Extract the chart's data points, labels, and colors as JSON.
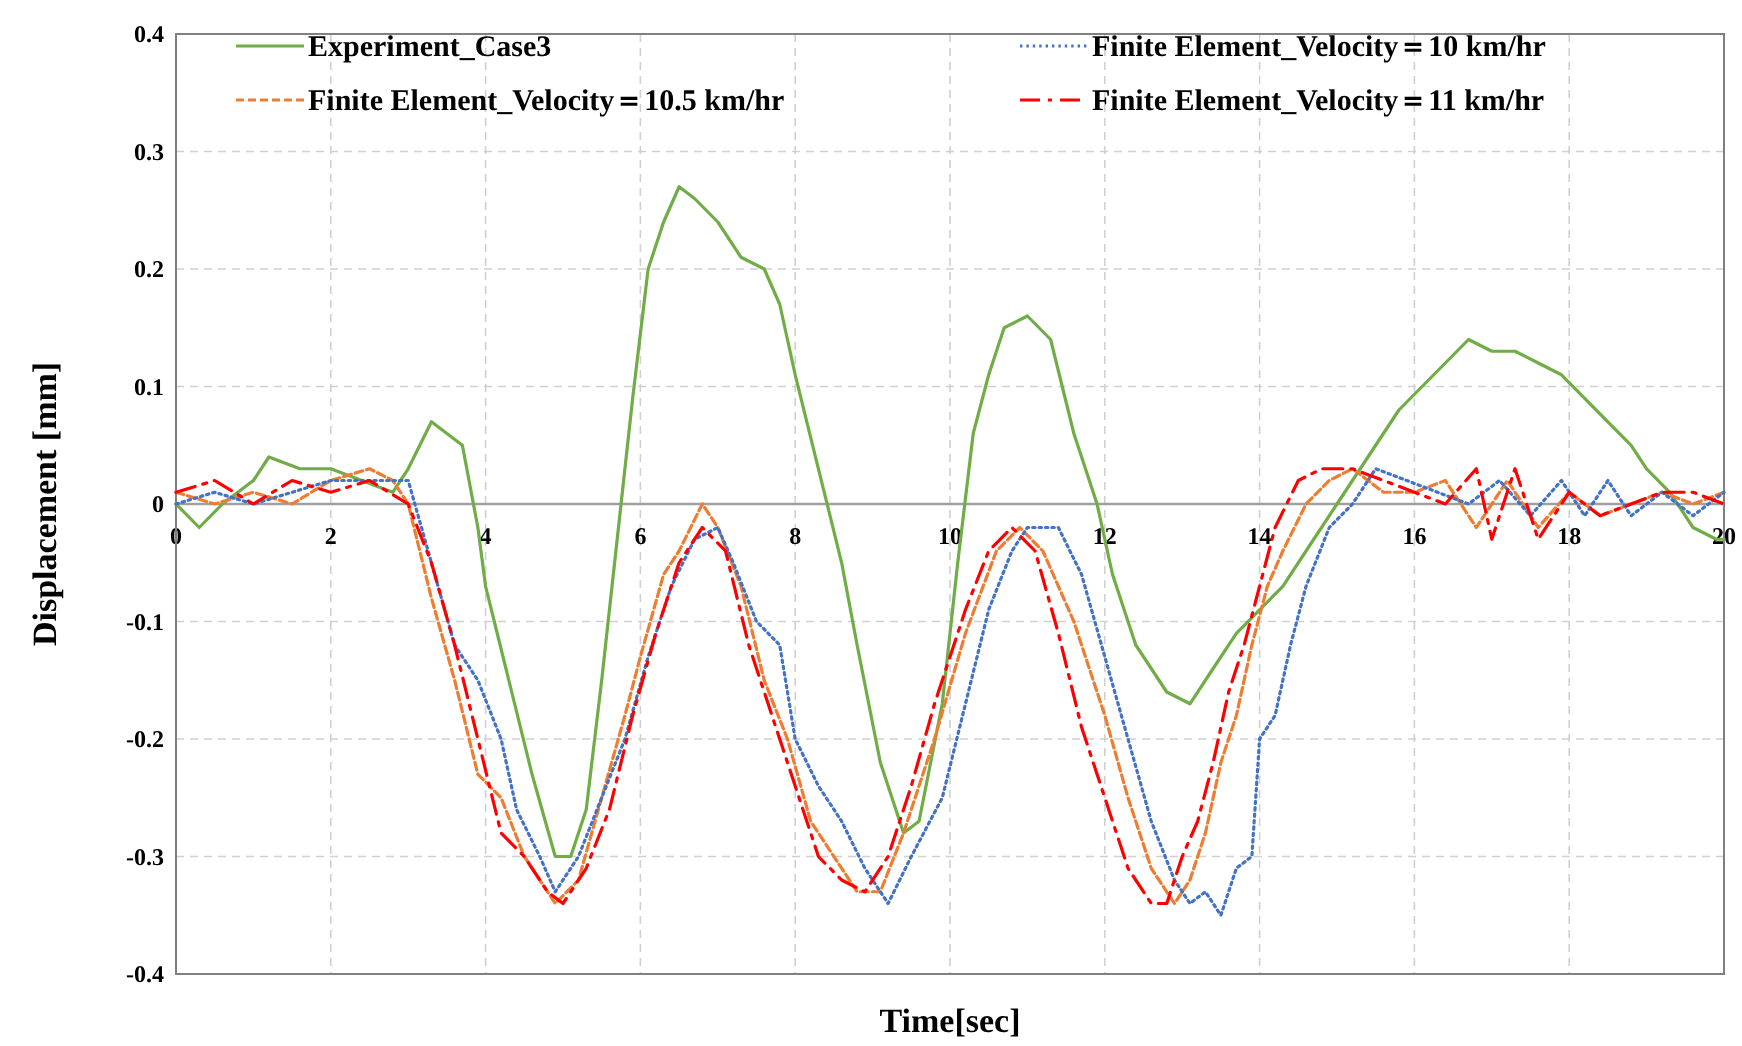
{
  "chart_data": {
    "type": "line",
    "xlabel": "Time[sec]",
    "ylabel": "Displacement [mm]",
    "xlim": [
      0,
      20
    ],
    "xticks": [
      0,
      2,
      4,
      6,
      8,
      10,
      12,
      14,
      16,
      18,
      20
    ],
    "ylim": [
      -0.4,
      0.4
    ],
    "yticks": [
      -0.4,
      -0.3,
      -0.2,
      -0.1,
      0,
      0.1,
      0.2,
      0.3,
      0.4
    ],
    "grid": true,
    "legend": "top",
    "marker": "none",
    "series": [
      {
        "name": "Experiment_Case3",
        "color": "#70ad47",
        "line_style": "solid",
        "x": [
          0,
          0.3,
          0.6,
          1.0,
          1.2,
          1.6,
          2.0,
          2.4,
          2.8,
          3.0,
          3.3,
          3.5,
          3.7,
          3.9,
          4.0,
          4.3,
          4.6,
          4.9,
          5.1,
          5.3,
          5.5,
          5.7,
          5.9,
          6.1,
          6.3,
          6.5,
          6.7,
          7.0,
          7.3,
          7.6,
          7.8,
          8.0,
          8.3,
          8.6,
          8.8,
          9.1,
          9.4,
          9.6,
          9.9,
          10.1,
          10.3,
          10.5,
          10.7,
          11.0,
          11.3,
          11.6,
          11.9,
          12.1,
          12.4,
          12.8,
          13.1,
          13.4,
          13.7,
          14.0,
          14.3,
          14.6,
          15.0,
          15.4,
          15.8,
          16.1,
          16.4,
          16.7,
          17.0,
          17.3,
          17.6,
          17.9,
          18.2,
          18.5,
          18.8,
          19.0,
          19.3,
          19.6,
          19.9,
          20
        ],
        "values": [
          0,
          -0.02,
          0.0,
          0.02,
          0.04,
          0.03,
          0.03,
          0.02,
          0.01,
          0.03,
          0.07,
          0.06,
          0.05,
          -0.02,
          -0.07,
          -0.15,
          -0.23,
          -0.3,
          -0.3,
          -0.26,
          -0.15,
          -0.03,
          0.09,
          0.2,
          0.24,
          0.27,
          0.26,
          0.24,
          0.21,
          0.2,
          0.17,
          0.11,
          0.03,
          -0.05,
          -0.12,
          -0.22,
          -0.28,
          -0.27,
          -0.17,
          -0.05,
          0.06,
          0.11,
          0.15,
          0.16,
          0.14,
          0.06,
          0.0,
          -0.06,
          -0.12,
          -0.16,
          -0.17,
          -0.14,
          -0.11,
          -0.09,
          -0.07,
          -0.04,
          0.0,
          0.04,
          0.08,
          0.1,
          0.12,
          0.14,
          0.13,
          0.13,
          0.12,
          0.11,
          0.09,
          0.07,
          0.05,
          0.03,
          0.01,
          -0.02,
          -0.03,
          -0.03
        ]
      },
      {
        "name": "Finite Element_Velocity＝10.5 km/hr",
        "color": "#ed7d31",
        "line_style": "dashed",
        "x": [
          0,
          0.5,
          1.0,
          1.5,
          2.0,
          2.5,
          2.8,
          3.0,
          3.3,
          3.6,
          3.9,
          4.2,
          4.5,
          4.7,
          4.9,
          5.2,
          5.5,
          5.8,
          6.0,
          6.3,
          6.5,
          6.8,
          7.0,
          7.3,
          7.6,
          7.9,
          8.2,
          8.5,
          8.8,
          9.1,
          9.4,
          9.8,
          10.2,
          10.6,
          10.9,
          11.2,
          11.6,
          12.0,
          12.3,
          12.6,
          12.9,
          13.1,
          13.3,
          13.5,
          13.7,
          13.9,
          14.1,
          14.3,
          14.6,
          14.9,
          15.2,
          15.6,
          16.0,
          16.4,
          16.8,
          17.2,
          17.6,
          18.0,
          18.4,
          18.8,
          19.2,
          19.6,
          20
        ],
        "values": [
          0.01,
          0.0,
          0.01,
          0.0,
          0.02,
          0.03,
          0.02,
          0.0,
          -0.08,
          -0.15,
          -0.23,
          -0.25,
          -0.3,
          -0.32,
          -0.34,
          -0.32,
          -0.25,
          -0.18,
          -0.13,
          -0.06,
          -0.04,
          0.0,
          -0.02,
          -0.07,
          -0.15,
          -0.2,
          -0.27,
          -0.3,
          -0.33,
          -0.33,
          -0.28,
          -0.2,
          -0.11,
          -0.04,
          -0.02,
          -0.04,
          -0.1,
          -0.18,
          -0.25,
          -0.31,
          -0.34,
          -0.32,
          -0.28,
          -0.22,
          -0.18,
          -0.12,
          -0.07,
          -0.04,
          0.0,
          0.02,
          0.03,
          0.01,
          0.01,
          0.02,
          -0.02,
          0.02,
          -0.02,
          0.01,
          -0.01,
          0.0,
          0.01,
          0.0,
          0.01
        ]
      },
      {
        "name": "Finite Element_Velocity＝10 km/hr",
        "color": "#4472c4",
        "line_style": "dotted",
        "x": [
          0,
          0.5,
          1.0,
          1.5,
          2.0,
          2.5,
          3.0,
          3.3,
          3.6,
          3.9,
          4.2,
          4.4,
          4.7,
          4.9,
          5.2,
          5.5,
          5.8,
          6.1,
          6.4,
          6.7,
          7.0,
          7.2,
          7.5,
          7.8,
          8.0,
          8.3,
          8.6,
          8.9,
          9.2,
          9.5,
          9.9,
          10.2,
          10.5,
          10.8,
          11.0,
          11.4,
          11.7,
          12.0,
          12.3,
          12.6,
          12.9,
          13.1,
          13.3,
          13.5,
          13.7,
          13.9,
          14.0,
          14.2,
          14.4,
          14.6,
          14.9,
          15.2,
          15.5,
          15.9,
          16.3,
          16.7,
          17.1,
          17.5,
          17.9,
          18.2,
          18.5,
          18.8,
          19.2,
          19.6,
          20
        ],
        "values": [
          0.0,
          0.01,
          0.0,
          0.01,
          0.02,
          0.02,
          0.02,
          -0.05,
          -0.12,
          -0.15,
          -0.2,
          -0.26,
          -0.3,
          -0.33,
          -0.3,
          -0.25,
          -0.2,
          -0.13,
          -0.07,
          -0.03,
          -0.02,
          -0.05,
          -0.1,
          -0.12,
          -0.2,
          -0.24,
          -0.27,
          -0.31,
          -0.34,
          -0.3,
          -0.25,
          -0.17,
          -0.09,
          -0.04,
          -0.02,
          -0.02,
          -0.06,
          -0.13,
          -0.2,
          -0.27,
          -0.32,
          -0.34,
          -0.33,
          -0.35,
          -0.31,
          -0.3,
          -0.2,
          -0.18,
          -0.12,
          -0.07,
          -0.02,
          0.0,
          0.03,
          0.02,
          0.01,
          0.0,
          0.02,
          -0.01,
          0.02,
          -0.01,
          0.02,
          -0.01,
          0.01,
          -0.01,
          0.01
        ]
      },
      {
        "name": "Finite Element_Velocity＝11 km/hr",
        "color": "#ff0000",
        "line_style": "dashdot",
        "x": [
          0,
          0.5,
          1.0,
          1.5,
          2.0,
          2.5,
          3.0,
          3.3,
          3.6,
          3.9,
          4.2,
          4.5,
          4.8,
          5.0,
          5.3,
          5.6,
          5.9,
          6.2,
          6.5,
          6.8,
          7.1,
          7.4,
          7.7,
          8.0,
          8.3,
          8.6,
          8.9,
          9.2,
          9.5,
          9.8,
          10.2,
          10.5,
          10.8,
          11.1,
          11.4,
          11.7,
          12.0,
          12.3,
          12.6,
          12.8,
          13.0,
          13.2,
          13.4,
          13.6,
          13.8,
          14.0,
          14.2,
          14.5,
          14.8,
          15.2,
          15.6,
          16.0,
          16.4,
          16.8,
          17.0,
          17.3,
          17.6,
          18.0,
          18.4,
          18.8,
          19.2,
          19.6,
          20
        ],
        "values": [
          0.01,
          0.02,
          0.0,
          0.02,
          0.01,
          0.02,
          0.0,
          -0.05,
          -0.12,
          -0.2,
          -0.28,
          -0.3,
          -0.33,
          -0.34,
          -0.31,
          -0.26,
          -0.18,
          -0.11,
          -0.05,
          -0.02,
          -0.04,
          -0.12,
          -0.18,
          -0.24,
          -0.3,
          -0.32,
          -0.33,
          -0.3,
          -0.24,
          -0.17,
          -0.09,
          -0.04,
          -0.02,
          -0.04,
          -0.11,
          -0.19,
          -0.25,
          -0.31,
          -0.34,
          -0.34,
          -0.3,
          -0.27,
          -0.22,
          -0.16,
          -0.12,
          -0.07,
          -0.02,
          0.02,
          0.03,
          0.03,
          0.02,
          0.01,
          0.0,
          0.03,
          -0.03,
          0.03,
          -0.03,
          0.01,
          -0.01,
          0.0,
          0.01,
          0.01,
          0.0
        ]
      }
    ]
  }
}
